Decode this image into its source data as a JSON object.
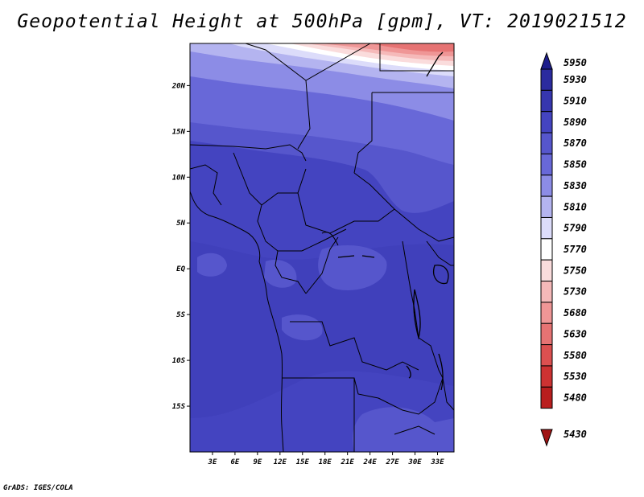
{
  "title": "Geopotential Height at 500hPa [gpm], VT: 2019021512",
  "credit": "GrADS: IGES/COLA",
  "lat_labels": [
    {
      "text": "20N",
      "lat": 20
    },
    {
      "text": "15N",
      "lat": 15
    },
    {
      "text": "10N",
      "lat": 10
    },
    {
      "text": "5N",
      "lat": 5
    },
    {
      "text": "EQ",
      "lat": 0
    },
    {
      "text": "5S",
      "lat": -5
    },
    {
      "text": "10S",
      "lat": -10
    },
    {
      "text": "15S",
      "lat": -15
    }
  ],
  "lon_labels": [
    {
      "text": "3E",
      "lon": 3
    },
    {
      "text": "6E",
      "lon": 6
    },
    {
      "text": "9E",
      "lon": 9
    },
    {
      "text": "12E",
      "lon": 12
    },
    {
      "text": "15E",
      "lon": 15
    },
    {
      "text": "18E",
      "lon": 18
    },
    {
      "text": "21E",
      "lon": 21
    },
    {
      "text": "24E",
      "lon": 24
    },
    {
      "text": "27E",
      "lon": 27
    },
    {
      "text": "30E",
      "lon": 30
    },
    {
      "text": "33E",
      "lon": 33
    }
  ],
  "legend": [
    {
      "label": "5950",
      "color": "#1e1e8c"
    },
    {
      "label": "5930",
      "color": "#2b2b9f"
    },
    {
      "label": "5910",
      "color": "#3636ae"
    },
    {
      "label": "5890",
      "color": "#4444c0"
    },
    {
      "label": "5870",
      "color": "#5656cc"
    },
    {
      "label": "5850",
      "color": "#6868d8"
    },
    {
      "label": "5830",
      "color": "#8c8ce6"
    },
    {
      "label": "5810",
      "color": "#b4b4f0"
    },
    {
      "label": "5790",
      "color": "#dcdcfa"
    },
    {
      "label": "5770",
      "color": "#ffffff"
    },
    {
      "label": "5750",
      "color": "#fadcdc"
    },
    {
      "label": "5730",
      "color": "#f5b9b9"
    },
    {
      "label": "5680",
      "color": "#ef9696"
    },
    {
      "label": "5630",
      "color": "#e67373"
    },
    {
      "label": "5580",
      "color": "#dc5050"
    },
    {
      "label": "5530",
      "color": "#cd3232"
    },
    {
      "label": "5480",
      "color": "#b91e1e"
    },
    {
      "label": "5430",
      "color": "#a01414"
    }
  ]
}
